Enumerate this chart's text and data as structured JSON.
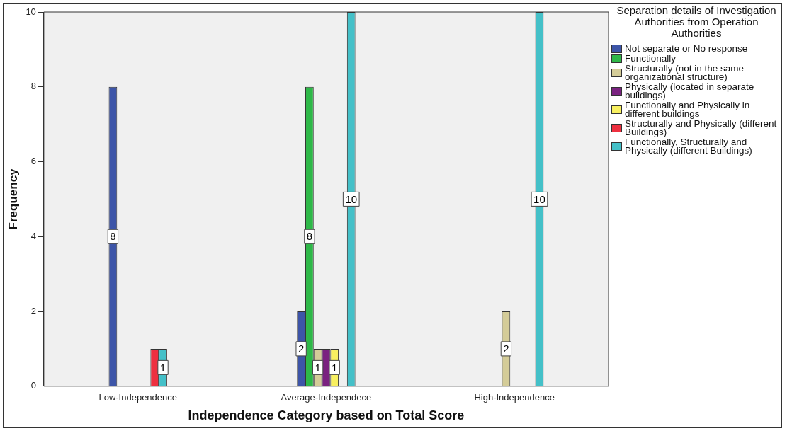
{
  "chart_data": {
    "type": "bar",
    "xlabel": "Independence Category based on Total Score",
    "ylabel": "Frequency",
    "legend_title": "Separation details of Investigation Authorities from Operation Authorities",
    "legend": "right",
    "grid": false,
    "categories": [
      "Low-Independence",
      "Average-Independece",
      "High-Independence"
    ],
    "ylim": [
      0,
      10
    ],
    "yticks": [
      0,
      2,
      4,
      6,
      8,
      10
    ],
    "series": [
      {
        "name": "Not separate or No response",
        "color": "#3d55a8",
        "values": [
          8,
          2,
          null
        ],
        "value_labels": [
          "8",
          "2",
          null
        ]
      },
      {
        "name": "Functionally",
        "color": "#2eb848",
        "values": [
          null,
          8,
          null
        ],
        "value_labels": [
          null,
          "8",
          null
        ]
      },
      {
        "name": "Structurally (not in the same organizational structure)",
        "color": "#d4cc98",
        "values": [
          null,
          1,
          2
        ],
        "value_labels": [
          null,
          "1",
          "2"
        ]
      },
      {
        "name": "Physically (located in separate buildings)",
        "color": "#7a2280",
        "values": [
          null,
          1,
          null
        ]
      },
      {
        "name": "Functionally and Physically in different buildings",
        "color": "#f8f060",
        "values": [
          null,
          1,
          null
        ],
        "value_labels": [
          null,
          "1",
          null
        ]
      },
      {
        "name": "Structurally and Physically (different Buildings)",
        "color": "#ee3040",
        "values": [
          1,
          null,
          null
        ]
      },
      {
        "name": "Functionally, Structurally and Physically (different Buildings)",
        "color": "#44c0c8",
        "values": [
          1,
          10,
          10
        ],
        "value_labels": [
          "1",
          "10",
          "10"
        ]
      }
    ]
  }
}
